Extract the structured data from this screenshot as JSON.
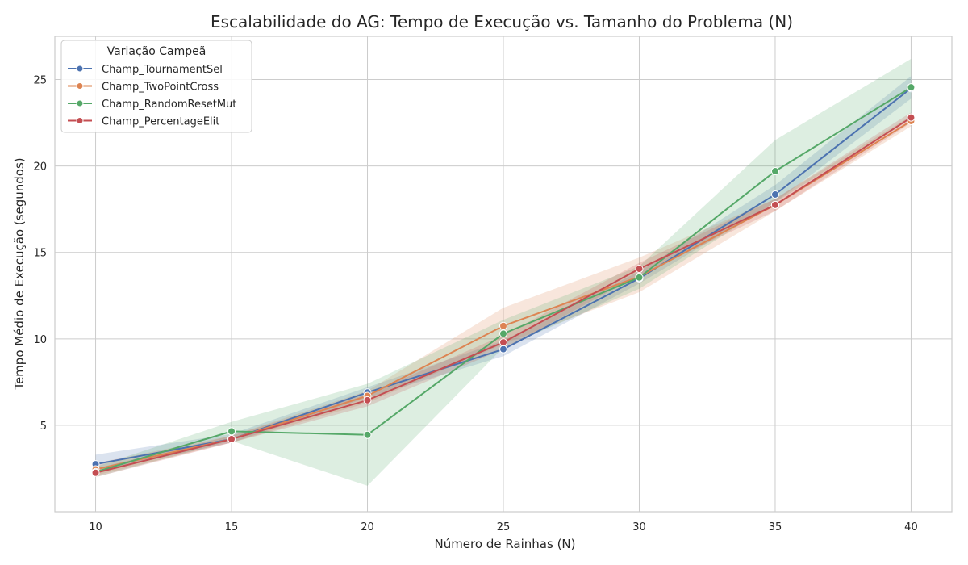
{
  "chart_data": {
    "type": "line",
    "title": "Escalabilidade do AG: Tempo de Execução vs. Tamanho do Problema (N)",
    "xlabel": "Número de Rainhas (N)",
    "ylabel": "Tempo Médio de Execução (segundos)",
    "x": [
      10,
      15,
      20,
      25,
      30,
      35,
      40
    ],
    "xlim": [
      8.5,
      41.5
    ],
    "ylim": [
      0.0,
      27.5
    ],
    "xticks": [
      10,
      15,
      20,
      25,
      30,
      35,
      40
    ],
    "yticks": [
      5,
      10,
      15,
      20,
      25
    ],
    "grid": true,
    "legend": {
      "title": "Variação Campeã",
      "placement": "top-left"
    },
    "series": [
      {
        "name": "Champ_TournamentSel",
        "color": "#4c72b0",
        "values": [
          2.75,
          4.2,
          6.9,
          9.4,
          13.5,
          18.35,
          24.5
        ],
        "ci_low": [
          2.3,
          4.0,
          6.6,
          9.0,
          13.2,
          17.9,
          23.9
        ],
        "ci_high": [
          3.3,
          4.5,
          7.2,
          9.9,
          13.9,
          18.9,
          25.2
        ]
      },
      {
        "name": "Champ_TwoPointCross",
        "color": "#dd8452",
        "values": [
          2.45,
          4.2,
          6.7,
          10.75,
          13.6,
          17.75,
          22.6
        ],
        "ci_low": [
          2.1,
          4.0,
          6.3,
          9.7,
          12.7,
          17.4,
          22.3
        ],
        "ci_high": [
          2.8,
          4.4,
          7.0,
          11.8,
          14.7,
          18.1,
          22.9
        ]
      },
      {
        "name": "Champ_RandomResetMut",
        "color": "#55a868",
        "values": [
          2.3,
          4.65,
          4.45,
          10.3,
          13.55,
          19.7,
          24.55
        ],
        "ci_low": [
          2.0,
          4.1,
          1.5,
          9.5,
          12.9,
          17.9,
          22.8
        ],
        "ci_high": [
          2.6,
          5.2,
          7.4,
          11.1,
          14.2,
          21.5,
          26.2
        ]
      },
      {
        "name": "Champ_PercentageElit",
        "color": "#c44e52",
        "values": [
          2.25,
          4.2,
          6.45,
          9.8,
          14.05,
          17.75,
          22.8
        ],
        "ci_low": [
          2.0,
          4.0,
          6.1,
          9.4,
          13.7,
          17.4,
          22.5
        ],
        "ci_high": [
          2.5,
          4.4,
          6.8,
          10.2,
          14.4,
          18.1,
          23.1
        ]
      }
    ]
  }
}
